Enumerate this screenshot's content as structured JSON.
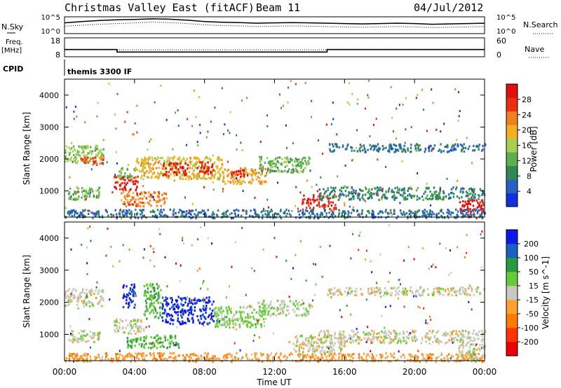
{
  "header": {
    "title": "Christmas Valley East (fitACF)",
    "beam": "Beam 11",
    "date": "04/Jul/2012"
  },
  "top_panels": {
    "nsky_label": "N.Sky",
    "nsearch_label": "N.Search",
    "nsky_ticks": [
      "10^5",
      "10^0"
    ],
    "nsearch_ticks": [
      "10^5",
      "10^0"
    ],
    "freq_label": [
      "Freq.",
      "[MHz]"
    ],
    "freq_ticks": [
      "18",
      "8"
    ],
    "nave_ticks": [
      "60",
      "0"
    ],
    "nave_label": "Nave",
    "cpid_label": "CPID",
    "cpid_value": "themis 3300 IF"
  },
  "colors": {
    "power": [
      "#1030e0",
      "#2a60c0",
      "#2f8a50",
      "#5fae4e",
      "#a8d050",
      "#f0b020",
      "#f08020",
      "#e83010",
      "#e01010"
    ],
    "velocity": [
      "#0a1ae8",
      "#1a60c0",
      "#2a9a40",
      "#66cc33",
      "#c8c8c0",
      "#ffa030",
      "#ff7a00",
      "#ff3300",
      "#ee0000"
    ]
  },
  "chart_data": [
    {
      "type": "line",
      "panel": "noise",
      "xlabel": "",
      "ylabel": "",
      "xlim": [
        0,
        24
      ],
      "series": [
        {
          "name": "N.Sky",
          "x": [
            0,
            1,
            2,
            3,
            4,
            5,
            6,
            7,
            8,
            9,
            10,
            11,
            12,
            13,
            14,
            15,
            16,
            17,
            18,
            19,
            20,
            21,
            22,
            23,
            24
          ],
          "y": [
            3.2,
            3.6,
            3.9,
            4.1,
            4.2,
            4.4,
            4.3,
            4.0,
            3.6,
            3.4,
            3.3,
            3.1,
            3.2,
            3.3,
            3.2,
            3.1,
            3.0,
            2.9,
            3.0,
            3.1,
            3.0,
            2.8,
            2.9,
            3.0,
            3.1
          ]
        },
        {
          "name": "N.Search",
          "x": [
            0,
            1,
            2,
            3,
            4,
            5,
            6,
            7,
            8,
            9,
            10,
            11,
            12,
            13,
            14,
            15,
            16,
            17,
            18,
            19,
            20,
            21,
            22,
            23,
            24
          ],
          "y": [
            2.2,
            2.5,
            2.8,
            3.0,
            3.2,
            3.4,
            3.3,
            3.0,
            2.6,
            2.4,
            2.3,
            2.1,
            2.2,
            2.3,
            2.2,
            2.1,
            2.0,
            1.9,
            2.0,
            2.1,
            2.0,
            1.8,
            1.9,
            2.0,
            2.1
          ]
        }
      ]
    },
    {
      "type": "line",
      "panel": "frequency",
      "xlim": [
        0,
        24
      ],
      "series": [
        {
          "name": "Freq.",
          "x": [
            0,
            3,
            3,
            15,
            15,
            24
          ],
          "y": [
            11.8,
            11.8,
            10.5,
            10.5,
            11.8,
            11.8
          ]
        },
        {
          "name": "Nave",
          "x": [
            0,
            24
          ],
          "y": [
            22,
            22
          ]
        }
      ]
    },
    {
      "type": "heatmap",
      "panel": "power",
      "xlabel": "",
      "ylabel": "Slant Range [km]",
      "xlim": [
        0,
        24
      ],
      "ylim": [
        180,
        4500
      ],
      "colorbar": {
        "label": "Power [dB]",
        "ticks": [
          4,
          8,
          12,
          16,
          20,
          24,
          28
        ],
        "range": [
          0,
          30
        ]
      },
      "regions": [
        {
          "t0": 0.0,
          "t1": 2.2,
          "r0": 1900,
          "r1": 2450,
          "level": 14
        },
        {
          "t0": 0.8,
          "t1": 2.2,
          "r0": 1850,
          "r1": 2100,
          "level": 24
        },
        {
          "t0": 0.2,
          "t1": 2.0,
          "r0": 750,
          "r1": 1150,
          "level": 12
        },
        {
          "t0": 2.8,
          "t1": 4.2,
          "r0": 1050,
          "r1": 1500,
          "level": 26
        },
        {
          "t0": 3.0,
          "t1": 4.0,
          "r0": 1450,
          "r1": 1750,
          "level": 12
        },
        {
          "t0": 3.2,
          "t1": 5.8,
          "r0": 550,
          "r1": 1000,
          "level": 22
        },
        {
          "t0": 4.0,
          "t1": 9.0,
          "r0": 1400,
          "r1": 2100,
          "level": 18
        },
        {
          "t0": 5.5,
          "t1": 7.0,
          "r0": 1500,
          "r1": 1900,
          "level": 28
        },
        {
          "t0": 7.5,
          "t1": 8.5,
          "r0": 1550,
          "r1": 1950,
          "level": 26
        },
        {
          "t0": 9.0,
          "t1": 11.5,
          "r0": 1250,
          "r1": 1750,
          "level": 20
        },
        {
          "t0": 9.5,
          "t1": 10.5,
          "r0": 1450,
          "r1": 1700,
          "level": 28
        },
        {
          "t0": 11.0,
          "t1": 14.0,
          "r0": 1600,
          "r1": 2100,
          "level": 12
        },
        {
          "t0": 13.5,
          "t1": 15.5,
          "r0": 450,
          "r1": 900,
          "level": 26
        },
        {
          "t0": 14.5,
          "t1": 24.0,
          "r0": 750,
          "r1": 1150,
          "level": 8
        },
        {
          "t0": 15.0,
          "t1": 24.0,
          "r0": 2250,
          "r1": 2500,
          "level": 6
        },
        {
          "t0": 22.5,
          "t1": 24.0,
          "r0": 180,
          "r1": 750,
          "level": 29
        },
        {
          "t0": 0.0,
          "t1": 24.0,
          "r0": 180,
          "r1": 450,
          "level": 6
        }
      ]
    },
    {
      "type": "heatmap",
      "panel": "velocity",
      "xlabel": "Time UT",
      "ylabel": "Slant Range [km]",
      "xlim": [
        0,
        24
      ],
      "xticks": [
        "00:00",
        "04:00",
        "08:00",
        "12:00",
        "16:00",
        "20:00",
        "00:00"
      ],
      "ylim": [
        180,
        4500
      ],
      "yticks": [
        1000,
        2000,
        3000,
        4000
      ],
      "colorbar": {
        "label": "Velocity [m s^-1]",
        "ticks": [
          "200",
          "100",
          "50",
          "15",
          "-15",
          "-50",
          "-100",
          "-200"
        ],
        "range": [
          -250,
          250
        ]
      },
      "regions": [
        {
          "t0": 0.0,
          "t1": 2.2,
          "r0": 1900,
          "r1": 2450,
          "level": 0
        },
        {
          "t0": 0.2,
          "t1": 2.0,
          "r0": 750,
          "r1": 1150,
          "level": 0
        },
        {
          "t0": 3.3,
          "t1": 4.0,
          "r0": 1850,
          "r1": 2650,
          "level": 210
        },
        {
          "t0": 2.8,
          "t1": 4.5,
          "r0": 1050,
          "r1": 1500,
          "level": 0
        },
        {
          "t0": 3.5,
          "t1": 6.5,
          "r0": 600,
          "r1": 1000,
          "level": 80
        },
        {
          "t0": 5.5,
          "t1": 8.5,
          "r0": 1350,
          "r1": 2200,
          "level": 220
        },
        {
          "t0": 4.5,
          "t1": 5.5,
          "r0": 1500,
          "r1": 2600,
          "level": 80
        },
        {
          "t0": 8.5,
          "t1": 11.5,
          "r0": 1250,
          "r1": 1900,
          "level": 40
        },
        {
          "t0": 11.0,
          "t1": 14.0,
          "r0": 1600,
          "r1": 2100,
          "level": 20
        },
        {
          "t0": 13.0,
          "t1": 16.0,
          "r0": 450,
          "r1": 1000,
          "level": 0
        },
        {
          "t0": 14.5,
          "t1": 24.0,
          "r0": 750,
          "r1": 1150,
          "level": 0
        },
        {
          "t0": 15.0,
          "t1": 24.0,
          "r0": 2250,
          "r1": 2500,
          "level": 0
        },
        {
          "t0": 0.0,
          "t1": 24.0,
          "r0": 180,
          "r1": 450,
          "level": -60
        },
        {
          "t0": 22.5,
          "t1": 24.0,
          "r0": 180,
          "r1": 750,
          "level": 0
        }
      ]
    }
  ]
}
